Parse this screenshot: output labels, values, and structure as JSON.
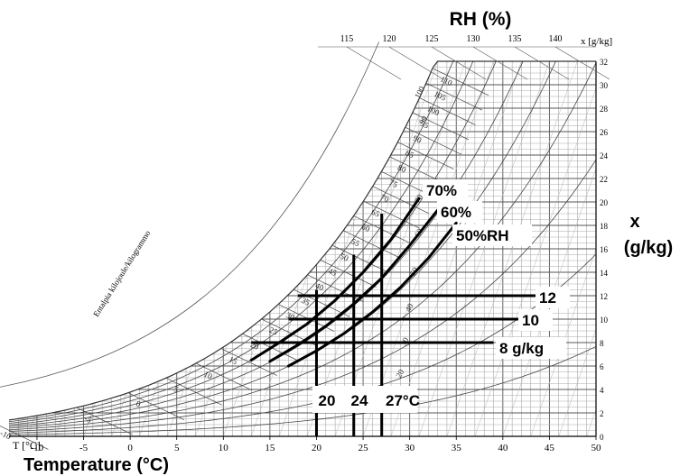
{
  "chart_data": {
    "type": "line",
    "title": "RH (%)",
    "xlabel": "Temperature (°C)",
    "ylabel": "x (g/kg)",
    "axis_prefix_label": "T [°C]",
    "top_axis_label": "x [g/kg]",
    "enthalpy_axis_label": "Entalpia kilojoule/kilogrammo",
    "xlim": [
      -13,
      50
    ],
    "ylim": [
      0,
      32
    ],
    "x_ticks": [
      -10,
      -5,
      0,
      5,
      10,
      15,
      20,
      25,
      30,
      35,
      40,
      45,
      50
    ],
    "y_ticks": [
      0,
      2,
      4,
      6,
      8,
      10,
      12,
      14,
      16,
      18,
      20,
      22,
      24,
      26,
      28,
      30,
      32
    ],
    "top_ticks": [
      115,
      120,
      125,
      130,
      135,
      140
    ],
    "enthalpy_ticks": [
      -10,
      -5,
      0,
      5,
      10,
      15,
      20,
      25,
      30,
      35,
      40,
      45,
      50,
      55,
      60,
      65,
      70,
      75,
      80,
      85,
      90,
      95,
      100,
      105,
      110
    ],
    "rh_grid_labels": [
      "100",
      "90",
      "70",
      "60",
      "50",
      "40",
      "30",
      "20"
    ],
    "grid": true,
    "series": [
      {
        "name": "70%",
        "x": [
          13,
          16,
          19,
          22,
          25,
          28,
          31
        ],
        "y": [
          6.5,
          8.0,
          9.6,
          11.6,
          14.0,
          16.8,
          20.3
        ]
      },
      {
        "name": "60%",
        "x": [
          15,
          18,
          21,
          24,
          27,
          30,
          33
        ],
        "y": [
          6.4,
          7.8,
          9.4,
          11.3,
          13.5,
          16.3,
          19.3
        ]
      },
      {
        "name": "50%RH",
        "x": [
          17,
          20,
          23,
          26,
          29,
          32,
          35
        ],
        "y": [
          6.0,
          7.3,
          8.8,
          10.6,
          12.7,
          15.2,
          18.2
        ]
      }
    ],
    "vertical_markers": [
      {
        "label": "20",
        "x": 20,
        "ymax": 12.5
      },
      {
        "label": "24",
        "x": 24,
        "ymax": 15.5
      },
      {
        "label": "27°C",
        "x": 27,
        "ymax": 19.0
      }
    ],
    "horizontal_markers": [
      {
        "label": "8 g/kg",
        "y": 8,
        "xmin": 13,
        "xmax": 39
      },
      {
        "label": "10",
        "y": 10,
        "xmin": 17,
        "xmax": 42
      },
      {
        "label": "12",
        "y": 12,
        "xmin": 18,
        "xmax": 45
      }
    ]
  }
}
